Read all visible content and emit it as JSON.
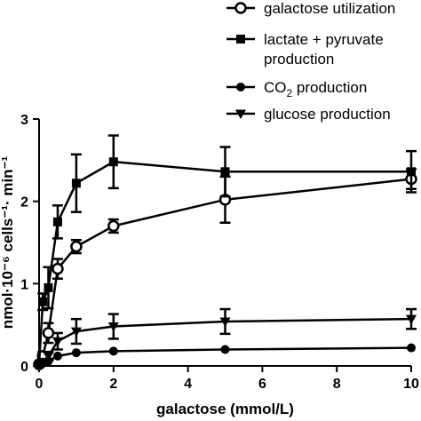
{
  "chart_data": {
    "type": "line",
    "xlabel": "galactose (mmol/L)",
    "ylabel": "nmol·10⁻⁶ cells⁻¹· min⁻¹",
    "xlim": [
      0,
      10
    ],
    "ylim": [
      0,
      3
    ],
    "xticks": [
      "0",
      "2",
      "4",
      "6",
      "8",
      "10"
    ],
    "yticks": [
      "0",
      "1",
      "2",
      "3"
    ],
    "legend_position": "top-right",
    "grid": false,
    "series": [
      {
        "name": "galactose utilization",
        "marker": "open-circle",
        "x": [
          0,
          0.1,
          0.25,
          0.5,
          1,
          2,
          5,
          10
        ],
        "y": [
          0.02,
          0.12,
          0.4,
          1.18,
          1.45,
          1.7,
          2.02,
          2.27
        ],
        "err": [
          0,
          0.05,
          0.12,
          0.12,
          0.08,
          0.08,
          0.28,
          0.12
        ]
      },
      {
        "name": "lactate + pyruvate production",
        "marker": "filled-square",
        "x": [
          0,
          0.1,
          0.25,
          0.5,
          1,
          2,
          5,
          10
        ],
        "y": [
          0.02,
          0.78,
          0.95,
          1.75,
          2.22,
          2.48,
          2.36,
          2.36
        ],
        "err": [
          0,
          0.1,
          0.25,
          0.2,
          0.35,
          0.32,
          0.3,
          0.25
        ]
      },
      {
        "name": "CO2 production",
        "marker": "filled-circle",
        "x": [
          0,
          0.1,
          0.25,
          0.5,
          1,
          2,
          5,
          10
        ],
        "y": [
          0,
          0.03,
          0.06,
          0.12,
          0.16,
          0.18,
          0.2,
          0.22
        ],
        "err": [
          0,
          0,
          0,
          0,
          0,
          0,
          0,
          0
        ]
      },
      {
        "name": "glucose production",
        "marker": "filled-triangle-down",
        "x": [
          0,
          0.1,
          0.25,
          0.5,
          1,
          2,
          5,
          10
        ],
        "y": [
          0,
          0.05,
          0.12,
          0.3,
          0.42,
          0.48,
          0.54,
          0.57
        ],
        "err": [
          0,
          0.02,
          0.05,
          0.1,
          0.15,
          0.15,
          0.15,
          0.12
        ]
      }
    ]
  }
}
